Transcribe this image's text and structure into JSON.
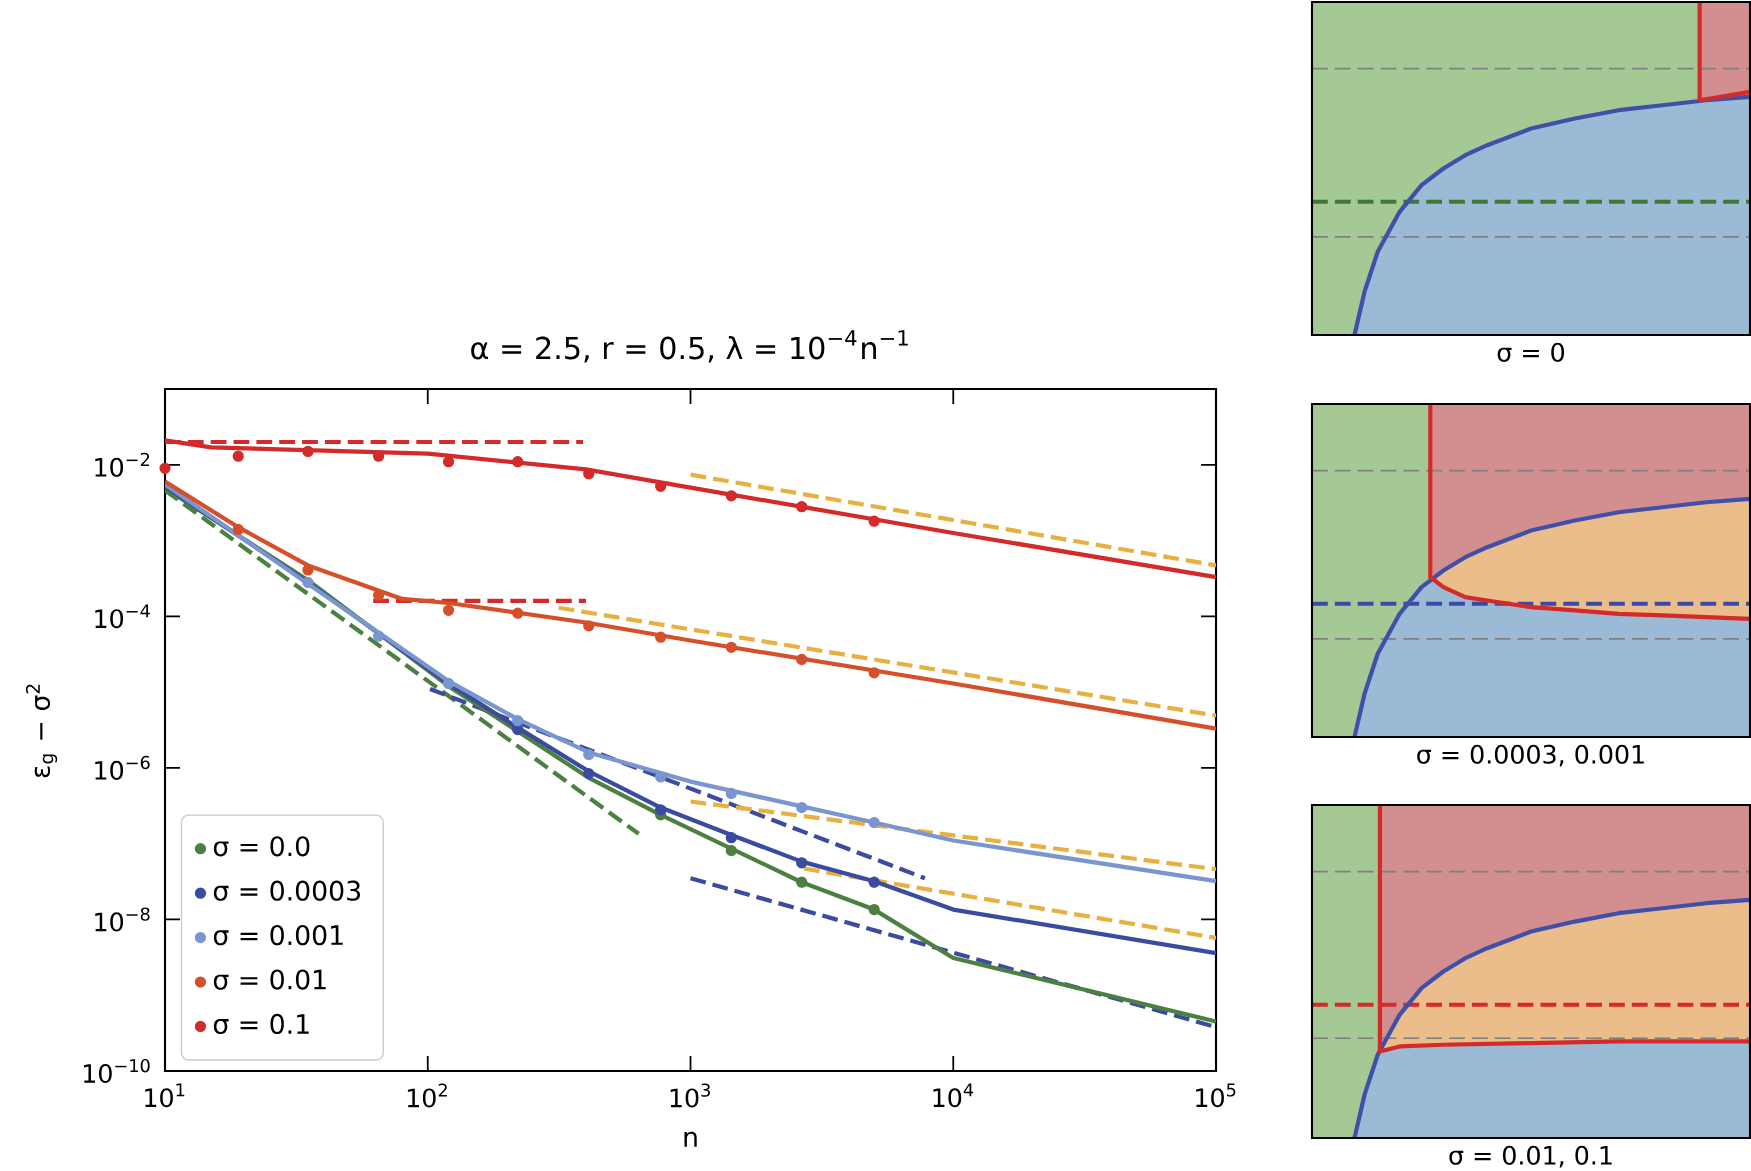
{
  "chart_data": [
    {
      "type": "line",
      "title": "α = 2.5, r = 0.5, λ = 10$^{−4}$n$^{−1}$",
      "xlabel": "n",
      "ylabel": "ε$_{g}$ − σ$^{2}$",
      "log": "xy",
      "legend": "bottom left",
      "xlim": [
        10,
        100000
      ],
      "ylim": [
        1e-10,
        0.1
      ],
      "xticks": [
        {
          "value": 10,
          "label": "10$^{1}$"
        },
        {
          "value": 100,
          "label": "10$^{2}$"
        },
        {
          "value": 1000,
          "label": "10$^{3}$"
        },
        {
          "value": 10000,
          "label": "10$^{4}$"
        },
        {
          "value": 100000,
          "label": "10$^{5}$"
        }
      ],
      "yticks": [
        {
          "value": 1e-10,
          "label": "10$^{−10}$"
        },
        {
          "value": 1e-08,
          "label": "10$^{−8}$"
        },
        {
          "value": 1e-06,
          "label": "10$^{−6}$"
        },
        {
          "value": 0.0001,
          "label": "10$^{−4}$"
        },
        {
          "value": 0.01,
          "label": "10$^{−2}$"
        }
      ],
      "series": [
        {
          "color": "#4c8040",
          "line_style": "dashed",
          "x": [
            10,
            635
          ],
          "values": [
            0.0046,
            1.35e-07
          ]
        },
        {
          "color": "#3b4ba0",
          "line_style": "dashed",
          "x": [
            102,
            7800
          ],
          "values": [
            1.1e-05,
            3.5e-08
          ]
        },
        {
          "color": "#3b4ba0",
          "line_style": "dashed",
          "x": [
            1000,
            100000
          ],
          "values": [
            3.5e-08,
            3.8e-10
          ]
        },
        {
          "color": "#e8b040",
          "line_style": "dashed",
          "x": [
            1000,
            100000
          ],
          "values": [
            0.0074,
            0.00047
          ]
        },
        {
          "color": "#e8b040",
          "line_style": "dashed",
          "x": [
            315,
            100000
          ],
          "values": [
            0.00013,
            4.9e-06
          ]
        },
        {
          "color": "#e8b040",
          "line_style": "dashed",
          "x": [
            1000,
            100000
          ],
          "values": [
            3.6e-07,
            4.6e-08
          ]
        },
        {
          "color": "#e8b040",
          "line_style": "dashed",
          "x": [
            2700,
            100000
          ],
          "values": [
            4.7e-08,
            5.7e-09
          ]
        },
        {
          "color": "#d42a2a",
          "line_style": "dashed",
          "x": [
            10,
            390
          ],
          "values": [
            0.02,
            0.02
          ]
        },
        {
          "color": "#d42a2a",
          "line_style": "dashed",
          "x": [
            62,
            400
          ],
          "values": [
            0.00016,
            0.00016
          ]
        },
        {
          "color": "#4c8040",
          "x": [
            10,
            35,
            120,
            410,
            770,
            2650,
            5000,
            10000,
            100000
          ],
          "values": [
            0.0049,
            0.0003,
            1.2e-05,
            7.4e-07,
            2.4e-07,
            3.1e-08,
            1.35e-08,
            3.1e-09,
            4.5e-10
          ]
        },
        {
          "color": "#3b4ba0",
          "x": [
            10,
            35,
            120,
            220,
            410,
            770,
            1430,
            2650,
            5000,
            10000,
            100000
          ],
          "values": [
            0.0052,
            0.00028,
            1.3e-05,
            3.4e-06,
            9e-07,
            3e-07,
            1.3e-07,
            5.8e-08,
            3.2e-08,
            1.35e-08,
            3.6e-09
          ]
        },
        {
          "color": "#7a96d0",
          "x": [
            10,
            35,
            120,
            220,
            410,
            1000,
            5000,
            10000,
            100000
          ],
          "values": [
            0.0055,
            0.00027,
            1.4e-05,
            4.4e-06,
            1.6e-06,
            6.6e-07,
            1.9e-07,
            1.1e-07,
            3.2e-08
          ]
        },
        {
          "color": "#d5502a",
          "x": [
            10,
            19,
            35,
            80,
            120,
            400,
            1000,
            10000,
            100000
          ],
          "values": [
            0.006,
            0.0015,
            0.00047,
            0.00017,
            0.00015,
            8.3e-05,
            4.8e-05,
            1.3e-05,
            3.3e-06
          ]
        },
        {
          "color": "#d42a2a",
          "x": [
            10,
            15,
            100,
            400,
            1000,
            10000,
            100000
          ],
          "values": [
            0.021,
            0.017,
            0.014,
            0.0087,
            0.005,
            0.00126,
            0.00033
          ]
        },
        {
          "type": "scatter",
          "name": "σ = 0.0",
          "color": "#4c8040",
          "marker": "circle",
          "x": [
            770,
            1430,
            2650,
            5000
          ],
          "values": [
            2.4e-07,
            8.1e-08,
            3.1e-08,
            1.35e-08
          ]
        },
        {
          "type": "scatter",
          "name": "σ = 0.0003",
          "color": "#3b4ba0",
          "marker": "circle",
          "x": [
            220,
            410,
            770,
            1430,
            2650,
            5000
          ],
          "values": [
            3.2e-06,
            8.4e-07,
            2.8e-07,
            1.2e-07,
            5.6e-08,
            3.1e-08
          ]
        },
        {
          "type": "scatter",
          "name": "σ = 0.001",
          "color": "#7a96d0",
          "marker": "circle",
          "x": [
            35,
            65,
            120,
            220,
            410,
            770,
            1430,
            2650,
            5000
          ],
          "values": [
            0.00028,
            5.5e-05,
            1.3e-05,
            4.2e-06,
            1.5e-06,
            7.6e-07,
            4.6e-07,
            3e-07,
            1.9e-07
          ]
        },
        {
          "type": "scatter",
          "name": "σ = 0.01",
          "color": "#d5502a",
          "marker": "circle",
          "x": [
            19,
            35,
            65,
            120,
            220,
            410,
            770,
            1430,
            2650,
            5000
          ],
          "values": [
            0.0014,
            0.00041,
            0.00019,
            0.00012,
            0.00011,
            7.5e-05,
            5.3e-05,
            3.9e-05,
            2.7e-05,
            1.8e-05
          ]
        },
        {
          "type": "scatter",
          "name": "σ = 0.1",
          "color": "#d42a2a",
          "marker": "circle",
          "x": [
            10,
            19,
            35,
            65,
            120,
            220,
            410,
            770,
            1430,
            2650,
            5000
          ],
          "values": [
            0.009,
            0.013,
            0.015,
            0.013,
            0.011,
            0.011,
            0.0076,
            0.0052,
            0.0039,
            0.0028,
            0.0018
          ]
        }
      ]
    },
    {
      "type": "other",
      "xlabel": "σ = 0"
    },
    {
      "type": "other",
      "xlabel": "σ = 0.0003, 0.001"
    },
    {
      "type": "other",
      "xlabel": "σ = 0.01, 0.1"
    }
  ]
}
